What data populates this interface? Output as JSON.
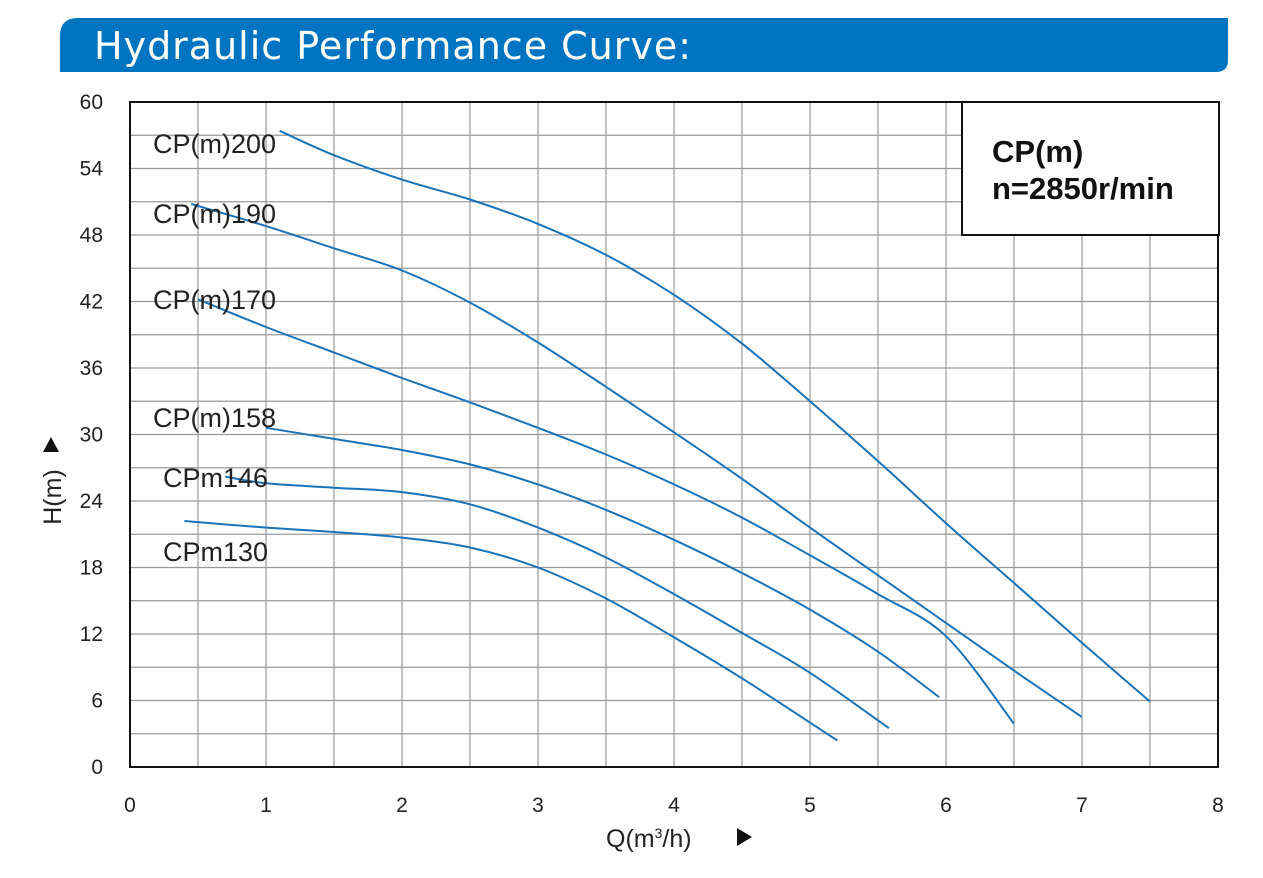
{
  "header": {
    "title": "Hydraulic Performance Curve:",
    "color": "#0074c1"
  },
  "info_box": {
    "model": "CP(m)",
    "speed": "n=2850r/min"
  },
  "colors": {
    "curve": "#1a73b8",
    "grid": "#9a9a9a",
    "axis": "#111111"
  },
  "chart_data": {
    "type": "line",
    "xlabel": "Q(m³/h)",
    "ylabel": "H(m)",
    "xlim": [
      0,
      8
    ],
    "ylim": [
      0,
      60
    ],
    "x_ticks": [
      "0",
      "1",
      "2",
      "3",
      "4",
      "5",
      "6",
      "7",
      "8"
    ],
    "y_ticks": [
      "0",
      "6",
      "12",
      "18",
      "24",
      "30",
      "36",
      "42",
      "48",
      "54",
      "60"
    ],
    "grid": true,
    "series": [
      {
        "name": "CP(m)200",
        "points": [
          [
            1.1,
            57.4
          ],
          [
            1.5,
            55.2
          ],
          [
            2.0,
            53.0
          ],
          [
            2.5,
            51.2
          ],
          [
            3.0,
            49.0
          ],
          [
            3.5,
            46.2
          ],
          [
            4.0,
            42.6
          ],
          [
            4.5,
            38.2
          ],
          [
            5.0,
            33.0
          ],
          [
            5.5,
            27.6
          ],
          [
            6.0,
            22.0
          ],
          [
            6.5,
            16.6
          ],
          [
            7.0,
            11.2
          ],
          [
            7.5,
            5.9
          ]
        ]
      },
      {
        "name": "CP(m)190",
        "points": [
          [
            0.45,
            50.8
          ],
          [
            1.0,
            48.8
          ],
          [
            1.5,
            46.8
          ],
          [
            2.0,
            44.8
          ],
          [
            2.5,
            41.9
          ],
          [
            3.0,
            38.3
          ],
          [
            3.5,
            34.3
          ],
          [
            4.0,
            30.2
          ],
          [
            4.5,
            26.0
          ],
          [
            5.0,
            21.6
          ],
          [
            5.5,
            17.3
          ],
          [
            6.0,
            13.0
          ],
          [
            6.5,
            8.7
          ],
          [
            7.0,
            4.5
          ]
        ]
      },
      {
        "name": "CP(m)170",
        "points": [
          [
            0.5,
            42.2
          ],
          [
            1.0,
            39.7
          ],
          [
            1.5,
            37.4
          ],
          [
            2.0,
            35.1
          ],
          [
            2.5,
            32.9
          ],
          [
            3.0,
            30.6
          ],
          [
            3.5,
            28.2
          ],
          [
            4.0,
            25.5
          ],
          [
            4.5,
            22.5
          ],
          [
            5.0,
            19.1
          ],
          [
            5.5,
            15.6
          ],
          [
            6.0,
            11.8
          ],
          [
            6.5,
            3.9
          ]
        ]
      },
      {
        "name": "CP(m)158",
        "points": [
          [
            1.0,
            30.6
          ],
          [
            1.5,
            29.6
          ],
          [
            2.0,
            28.6
          ],
          [
            2.5,
            27.3
          ],
          [
            3.0,
            25.5
          ],
          [
            3.5,
            23.2
          ],
          [
            4.0,
            20.5
          ],
          [
            4.5,
            17.5
          ],
          [
            5.0,
            14.2
          ],
          [
            5.5,
            10.4
          ],
          [
            5.95,
            6.3
          ]
        ]
      },
      {
        "name": "CPm146",
        "points": [
          [
            0.7,
            26.2
          ],
          [
            1.0,
            25.6
          ],
          [
            1.5,
            25.2
          ],
          [
            2.0,
            24.8
          ],
          [
            2.5,
            23.7
          ],
          [
            3.0,
            21.6
          ],
          [
            3.5,
            18.9
          ],
          [
            4.0,
            15.6
          ],
          [
            4.5,
            12.1
          ],
          [
            5.0,
            8.5
          ],
          [
            5.58,
            3.5
          ]
        ]
      },
      {
        "name": "CPm130",
        "points": [
          [
            0.4,
            22.2
          ],
          [
            1.0,
            21.6
          ],
          [
            1.5,
            21.2
          ],
          [
            2.0,
            20.7
          ],
          [
            2.5,
            19.8
          ],
          [
            3.0,
            18.0
          ],
          [
            3.5,
            15.2
          ],
          [
            4.0,
            11.7
          ],
          [
            4.5,
            8.0
          ],
          [
            5.2,
            2.4
          ]
        ]
      }
    ]
  }
}
